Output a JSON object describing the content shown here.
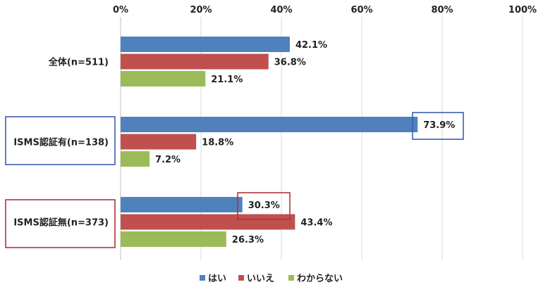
{
  "chart_data": {
    "type": "bar",
    "orientation": "horizontal",
    "categories": [
      "全体(n=511)",
      "ISMS認証有(n=138)",
      "ISMS認証無(n=373)"
    ],
    "series": [
      {
        "name": "はい",
        "values": [
          42.1,
          73.9,
          30.3
        ],
        "labels": [
          "42.1%",
          "73.9%",
          "30.3%"
        ],
        "color": "#4f81bd"
      },
      {
        "name": "いいえ",
        "values": [
          36.8,
          18.8,
          43.4
        ],
        "labels": [
          "36.8%",
          "18.8%",
          "43.4%"
        ],
        "color": "#c0504d"
      },
      {
        "name": "わからない",
        "values": [
          21.1,
          7.2,
          26.3
        ],
        "labels": [
          "21.1%",
          "7.2%",
          "26.3%"
        ],
        "color": "#9bbb59"
      }
    ],
    "xlim": [
      0,
      100
    ],
    "x_ticks": [
      "0%",
      "20%",
      "40%",
      "60%",
      "80%",
      "100%"
    ],
    "grid": true,
    "legend_position": "bottom",
    "highlight_colors": {
      "category_2": "#3a5fb0",
      "category_3": "#b0353a"
    }
  }
}
